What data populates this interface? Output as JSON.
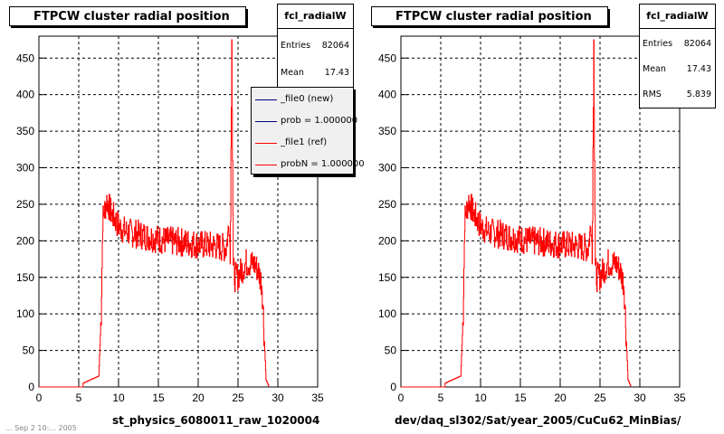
{
  "chart_data": [
    {
      "type": "histogram",
      "title": "FTPCW cluster radial position",
      "xlabel": "st_physics_6080011_raw_1020004",
      "xlim": [
        0,
        35
      ],
      "ylim": [
        0,
        480
      ],
      "xticks": [
        0,
        5,
        10,
        15,
        20,
        25,
        30,
        35
      ],
      "yticks": [
        0,
        50,
        100,
        150,
        200,
        250,
        300,
        350,
        400,
        450
      ],
      "grid": true,
      "stats": {
        "name": "fcl_radialW",
        "entries_label": "Entries",
        "entries": "82064",
        "mean_label": "Mean",
        "mean": "17.43"
      },
      "legend": {
        "placement": "top-right",
        "entries": [
          {
            "label": "_file0 (new)",
            "color": "#000080"
          },
          {
            "label": "prob = 1.000000",
            "color": "#000080"
          },
          {
            "label": "_file1 (ref)",
            "color": "#ff0000"
          },
          {
            "label": "probN = 1.000000",
            "color": "#ff0000"
          }
        ]
      },
      "series": [
        {
          "color": "#ff0000",
          "x": [
            5.5,
            7.5,
            7.8,
            8.0,
            8.5,
            9.0,
            10,
            11,
            12,
            14,
            16,
            18,
            20,
            22,
            23.5,
            23.9,
            24.0,
            24.2,
            24.4,
            24.6,
            25,
            26,
            27,
            27.5,
            28,
            28.5,
            28.9
          ],
          "y": [
            5,
            15,
            100,
            230,
            255,
            240,
            220,
            212,
            210,
            205,
            200,
            198,
            195,
            193,
            190,
            228,
            170,
            475,
            160,
            150,
            152,
            170,
            168,
            160,
            140,
            10,
            0
          ]
        }
      ]
    },
    {
      "type": "histogram",
      "title": "FTPCW cluster radial position",
      "xlabel": "dev/daq_sl302/Sat/year_2005/CuCu62_MinBias/",
      "xlim": [
        0,
        35
      ],
      "ylim": [
        0,
        480
      ],
      "xticks": [
        0,
        5,
        10,
        15,
        20,
        25,
        30,
        35
      ],
      "yticks": [
        0,
        50,
        100,
        150,
        200,
        250,
        300,
        350,
        400,
        450
      ],
      "grid": true,
      "stats": {
        "name": "fcl_radialW",
        "entries_label": "Entries",
        "entries": "82064",
        "mean_label": "Mean",
        "mean": "17.43",
        "rms_label": "RMS",
        "rms": "5.839"
      },
      "series": [
        {
          "color": "#ff0000",
          "x": [
            5.5,
            7.5,
            7.8,
            8.0,
            8.5,
            9.0,
            10,
            11,
            12,
            14,
            16,
            18,
            20,
            22,
            23.5,
            23.9,
            24.0,
            24.2,
            24.4,
            24.6,
            25,
            26,
            27,
            27.5,
            28,
            28.5,
            28.9
          ],
          "y": [
            5,
            15,
            100,
            230,
            255,
            240,
            220,
            212,
            210,
            205,
            200,
            198,
            195,
            193,
            190,
            228,
            170,
            475,
            160,
            150,
            152,
            170,
            168,
            160,
            140,
            10,
            0
          ]
        }
      ]
    }
  ],
  "footer_text": "... Sep  2 10:... 2005"
}
